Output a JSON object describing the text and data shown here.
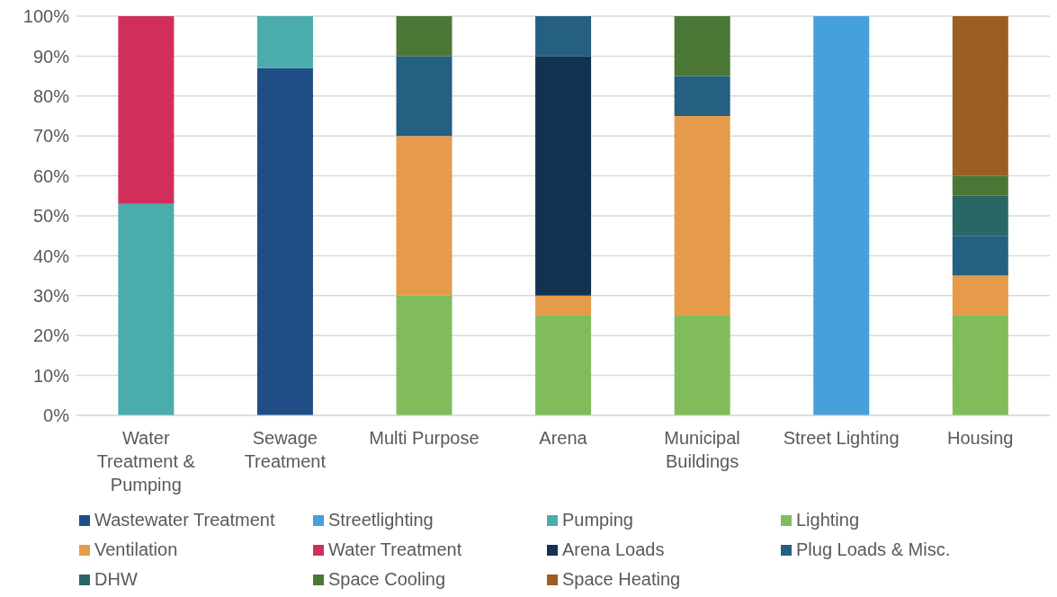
{
  "chart_data": {
    "type": "bar",
    "stacked": true,
    "categories": [
      "Water Treatment & Pumping",
      "Sewage Treatment",
      "Multi Purpose",
      "Arena",
      "Municipal Buildings",
      "Street Lighting",
      "Housing"
    ],
    "ylim": [
      0,
      100
    ],
    "yticks": [
      {
        "value": 0,
        "label": "0%"
      },
      {
        "value": 10,
        "label": "10%"
      },
      {
        "value": 20,
        "label": "20%"
      },
      {
        "value": 30,
        "label": "30%"
      },
      {
        "value": 40,
        "label": "40%"
      },
      {
        "value": 50,
        "label": "50%"
      },
      {
        "value": 60,
        "label": "60%"
      },
      {
        "value": 70,
        "label": "70%"
      },
      {
        "value": 80,
        "label": "80%"
      },
      {
        "value": 90,
        "label": "90%"
      },
      {
        "value": 100,
        "label": "100%"
      }
    ],
    "grid": "y",
    "legend": "bottom",
    "series": [
      {
        "name": "Wastewater Treatment",
        "color": "#1f4e87",
        "values": [
          null,
          87,
          null,
          null,
          null,
          null,
          null
        ]
      },
      {
        "name": "Streetlighting",
        "color": "#46a0db",
        "values": [
          null,
          null,
          null,
          null,
          null,
          100,
          null
        ]
      },
      {
        "name": "Pumping",
        "color": "#4bacad",
        "values": [
          53,
          13,
          null,
          null,
          null,
          null,
          null
        ]
      },
      {
        "name": "Lighting",
        "color": "#80bd5a",
        "values": [
          null,
          null,
          30,
          25,
          25,
          null,
          25
        ]
      },
      {
        "name": "Ventilation",
        "color": "#e59b4a",
        "values": [
          null,
          null,
          40,
          5,
          50,
          null,
          10
        ]
      },
      {
        "name": "Water Treatment",
        "color": "#d12e5b",
        "values": [
          47,
          null,
          null,
          null,
          null,
          null,
          null
        ]
      },
      {
        "name": "Arena Loads",
        "color": "#123252",
        "values": [
          null,
          null,
          null,
          60,
          null,
          null,
          null
        ]
      },
      {
        "name": "Plug Loads & Misc.",
        "color": "#255f82",
        "values": [
          null,
          null,
          20,
          10,
          10,
          null,
          10
        ]
      },
      {
        "name": "DHW",
        "color": "#2a6665",
        "values": [
          null,
          null,
          null,
          null,
          null,
          null,
          10
        ]
      },
      {
        "name": "Space Cooling",
        "color": "#4b7736",
        "values": [
          null,
          null,
          10,
          null,
          15,
          null,
          5
        ]
      },
      {
        "name": "Space Heating",
        "color": "#9b5f23",
        "values": [
          null,
          null,
          null,
          null,
          null,
          null,
          40
        ]
      }
    ]
  }
}
